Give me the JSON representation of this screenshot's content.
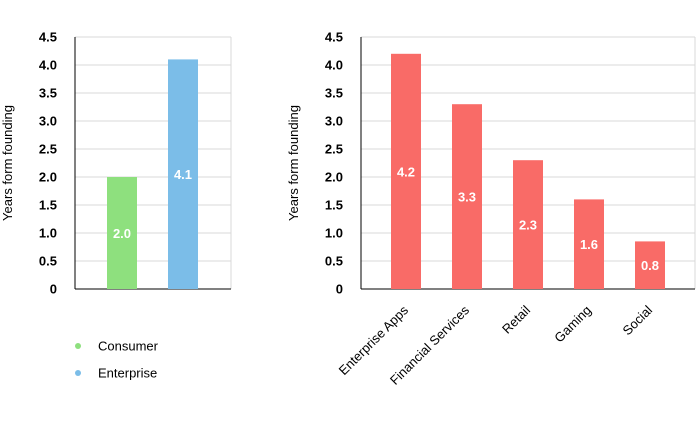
{
  "chart_data": [
    {
      "type": "bar",
      "categories": [
        "Consumer",
        "Enterprise"
      ],
      "values": [
        2.0,
        4.1
      ],
      "value_labels": [
        "2.0",
        "4.1"
      ],
      "colors": [
        "#8ee07e",
        "#7bbde8"
      ],
      "ylabel": "Years form founding",
      "ylim": [
        0,
        4.5
      ],
      "yticks": [
        "0",
        "0.5",
        "1.0",
        "1.5",
        "2.0",
        "2.5",
        "3.0",
        "3.5",
        "4.0",
        "4.5"
      ],
      "grid": true,
      "legend": {
        "position": "bottom-left",
        "entries": [
          {
            "label": "Consumer",
            "color": "#8ee07e"
          },
          {
            "label": "Enterprise",
            "color": "#7bbde8"
          }
        ]
      }
    },
    {
      "type": "bar",
      "categories": [
        "Enterprise Apps",
        "Financial Services",
        "Retail",
        "Gaming",
        "Social"
      ],
      "values": [
        4.2,
        3.3,
        2.3,
        1.6,
        0.85
      ],
      "value_labels": [
        "4.2",
        "3.3",
        "2.3",
        "1.6",
        "0.8"
      ],
      "color": "#f96b67",
      "ylabel": "Years form founding",
      "ylim": [
        0,
        4.5
      ],
      "yticks": [
        "0",
        "0.5",
        "1.0",
        "1.5",
        "2.0",
        "2.5",
        "3.0",
        "3.5",
        "4.0",
        "4.5"
      ],
      "grid": true
    }
  ]
}
